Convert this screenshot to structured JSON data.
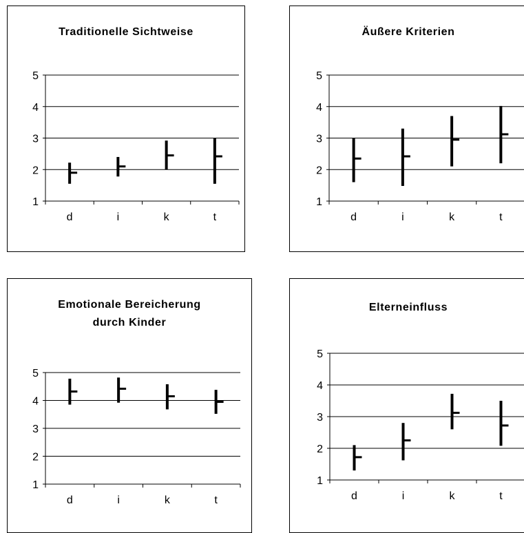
{
  "chart_data": [
    {
      "type": "high-low-close",
      "title": "Traditionelle Sichtweise",
      "categories": [
        "d",
        "i",
        "k",
        "t"
      ],
      "ylim": [
        1,
        5
      ],
      "yticks": [
        "1",
        "2",
        "3",
        "4",
        "5"
      ],
      "grid": true,
      "series": [
        {
          "values": [
            {
              "low": 1.55,
              "high": 2.22,
              "close": 1.9
            },
            {
              "low": 1.78,
              "high": 2.4,
              "close": 2.1
            },
            {
              "low": 2.0,
              "high": 2.92,
              "close": 2.45
            },
            {
              "low": 1.55,
              "high": 3.0,
              "close": 2.42
            }
          ]
        }
      ]
    },
    {
      "type": "high-low-close",
      "title": "Äußere Kriterien",
      "categories": [
        "d",
        "i",
        "k",
        "t"
      ],
      "ylim": [
        1,
        5
      ],
      "yticks": [
        "1",
        "2",
        "3",
        "4",
        "5"
      ],
      "grid": true,
      "series": [
        {
          "values": [
            {
              "low": 1.6,
              "high": 3.0,
              "close": 2.35
            },
            {
              "low": 1.48,
              "high": 3.3,
              "close": 2.42
            },
            {
              "low": 2.1,
              "high": 3.7,
              "close": 2.95
            },
            {
              "low": 2.2,
              "high": 4.02,
              "close": 3.12
            }
          ]
        }
      ]
    },
    {
      "type": "high-low-close",
      "title": "Emotionale Bereicherung durch Kinder",
      "title_lines": [
        "Emotionale Bereicherung",
        "durch Kinder"
      ],
      "categories": [
        "d",
        "i",
        "k",
        "t"
      ],
      "ylim": [
        1,
        5
      ],
      "yticks": [
        "1",
        "2",
        "3",
        "4",
        "5"
      ],
      "grid": true,
      "series": [
        {
          "values": [
            {
              "low": 3.85,
              "high": 4.78,
              "close": 4.32
            },
            {
              "low": 3.92,
              "high": 4.82,
              "close": 4.42
            },
            {
              "low": 3.68,
              "high": 4.58,
              "close": 4.15
            },
            {
              "low": 3.52,
              "high": 4.38,
              "close": 3.95
            }
          ]
        }
      ]
    },
    {
      "type": "high-low-close",
      "title": "Elterneinfluss",
      "categories": [
        "d",
        "i",
        "k",
        "t"
      ],
      "ylim": [
        1,
        5
      ],
      "yticks": [
        "1",
        "2",
        "3",
        "4",
        "5"
      ],
      "grid": true,
      "series": [
        {
          "values": [
            {
              "low": 1.3,
              "high": 2.1,
              "close": 1.72
            },
            {
              "low": 1.62,
              "high": 2.8,
              "close": 2.25
            },
            {
              "low": 2.6,
              "high": 3.72,
              "close": 3.12
            },
            {
              "low": 2.08,
              "high": 3.5,
              "close": 2.72
            }
          ]
        }
      ]
    }
  ]
}
